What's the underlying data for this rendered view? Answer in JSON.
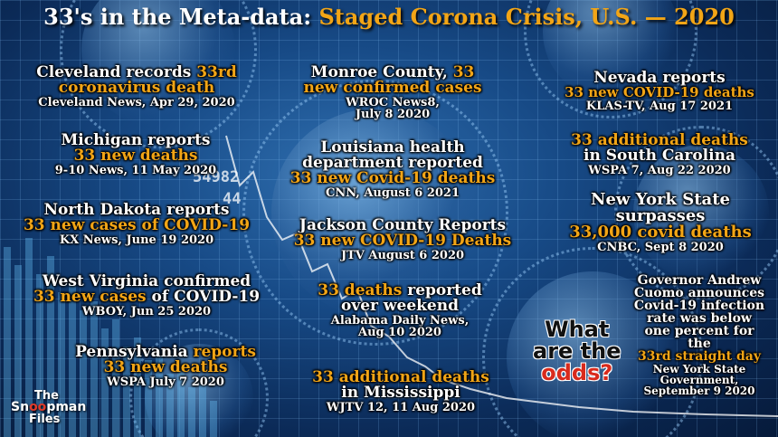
{
  "title": {
    "prefix": "33's in the Meta-data: ",
    "highlight": "Staged Corona Crisis, U.S. — 2020"
  },
  "colors": {
    "accent": "#f2a516",
    "text": "#ffffff",
    "odds_red": "#d92a1c"
  },
  "headlines": {
    "cleveland": {
      "white": "Cleveland records ",
      "orange": "33rd coronavirus death",
      "source": "Cleveland News, Apr 29, 2020"
    },
    "michigan": {
      "white": "Michigan reports",
      "orange": "33 new deaths",
      "source": "9-10 News, 11 May 2020"
    },
    "north_dakota": {
      "white": "North Dakota reports",
      "orange": "33 new cases of COVID-19",
      "source": "KX News, June 19 2020"
    },
    "west_virginia": {
      "white1": "West Virginia confirmed",
      "orange": "33 new cases",
      "white2": " of COVID-19",
      "source": "WBOY, Jun 25 2020"
    },
    "pennsylvania": {
      "white": "Pennsylvania ",
      "orange1": "reports",
      "orange2": "33 new deaths",
      "source": "WSPA July 7 2020"
    },
    "monroe": {
      "white": "Monroe County, ",
      "orange": "33 new confirmed cases",
      "source1": "WROC News8,",
      "source2": "July 8 2020"
    },
    "louisiana": {
      "white1": "Louisiana health",
      "white2": "department reported",
      "orange": "33 new Covid-19 deaths",
      "source": "CNN, August 6 2021"
    },
    "jackson": {
      "white": "Jackson County Reports",
      "orange": "33 new COVID-19 Deaths",
      "source": "JTV August 6 2020"
    },
    "alabama": {
      "orange": "33 deaths",
      "white1": " reported",
      "white2": "over weekend",
      "source1": "Alabama Daily News,",
      "source2": "Aug 10 2020"
    },
    "mississippi": {
      "orange": "33 additional deaths",
      "white": "in Mississippi",
      "source": "WJTV 12, 11 Aug 2020"
    },
    "nevada": {
      "white": "Nevada reports",
      "orange": "33 new COVID-19 deaths",
      "source": "KLAS-TV, Aug 17 2021"
    },
    "south_carolina": {
      "orange": "33 additional deaths",
      "white": "in South Carolina",
      "source": "WSPA 7, Aug 22 2020"
    },
    "new_york": {
      "white1": "New York State",
      "white2": "surpasses",
      "orange": "33,000 covid deaths",
      "source": "CNBC, Sept 8 2020"
    },
    "cuomo": {
      "w1": "Governor Andrew",
      "w2": "Cuomo announces",
      "w3": "Covid-19 infection",
      "w4": "rate was below",
      "w5": "one percent for",
      "w6": "the",
      "orange": "33rd straight day",
      "source1": "New York State",
      "source2": "Government,",
      "source3": "September 9 2020"
    }
  },
  "odds": {
    "line1": "What",
    "line2": "are the",
    "line3": "odds?"
  },
  "logo": {
    "line1": "The",
    "pre": "Sn",
    "mid": "oo",
    "post": "pman",
    "line3": "Files"
  },
  "ticker_numbers": {
    "n1": "54982",
    "n2": "44"
  }
}
